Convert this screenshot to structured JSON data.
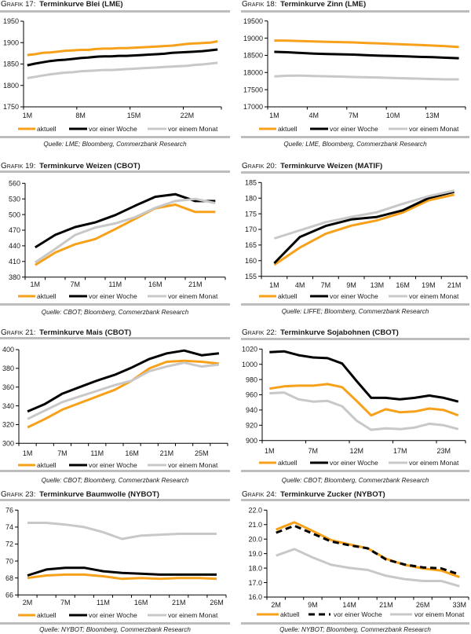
{
  "colors": {
    "current": "#f7a11a",
    "week_ago": "#000000",
    "month_ago": "#c8c8c8",
    "rule": "#bdbdbd",
    "text": "#1a1a1a"
  },
  "chart_data": [
    {
      "type": "line",
      "label": "Grafik",
      "number": "17:",
      "title": "Terminkurve Blei (LME)",
      "source": "Quelle: LME; Bloomberg, Commerzbank Research",
      "xlabel": "",
      "ylabel": "",
      "ylim": [
        1750,
        1950
      ],
      "y_ticks": [
        "1950",
        "1900",
        "1850",
        "1800",
        "1750"
      ],
      "categories": [
        "1M",
        "",
        "",
        "",
        "",
        "",
        "",
        "8M",
        "",
        "",
        "",
        "",
        "",
        "",
        "15M",
        "",
        "",
        "",
        "",
        "",
        "",
        "22M",
        "",
        "",
        "",
        ""
      ],
      "tick_interval": 7,
      "grid": false,
      "legend": "bottom",
      "series": [
        {
          "name": "aktuell",
          "color": "#f7a11a",
          "style": "solid",
          "values": [
            1871,
            1873,
            1876,
            1877,
            1879,
            1881,
            1882,
            1883,
            1883,
            1885,
            1886,
            1886,
            1887,
            1887,
            1888,
            1889,
            1890,
            1891,
            1892,
            1893,
            1895,
            1897,
            1898,
            1899,
            1900,
            1903
          ]
        },
        {
          "name": "vor einer Woche",
          "color": "#000000",
          "style": "solid",
          "values": [
            1847,
            1851,
            1854,
            1857,
            1859,
            1860,
            1862,
            1864,
            1865,
            1867,
            1868,
            1868,
            1869,
            1869,
            1870,
            1871,
            1872,
            1873,
            1874,
            1876,
            1877,
            1878,
            1879,
            1880,
            1882,
            1884
          ]
        },
        {
          "name": "vor einem Monat",
          "color": "#c8c8c8",
          "style": "solid",
          "values": [
            1817,
            1820,
            1823,
            1826,
            1828,
            1830,
            1831,
            1833,
            1834,
            1835,
            1836,
            1836,
            1837,
            1838,
            1839,
            1840,
            1841,
            1842,
            1843,
            1844,
            1845,
            1846,
            1848,
            1849,
            1851,
            1853
          ]
        }
      ]
    },
    {
      "type": "line",
      "label": "Grafik",
      "number": "18:",
      "title": "Terminkurve Zinn (LME)",
      "source": "Quelle: LME, Bloomberg, Commerzbank Research",
      "xlabel": "",
      "ylabel": "",
      "ylim": [
        17000,
        19500
      ],
      "y_ticks": [
        "19500",
        "19000",
        "18500",
        "18000",
        "17500",
        "17000"
      ],
      "categories": [
        "1M",
        "",
        "",
        "4M",
        "",
        "",
        "7M",
        "",
        "",
        "10M",
        "",
        "",
        "13M",
        "",
        ""
      ],
      "tick_interval": 3,
      "grid": false,
      "legend": "bottom",
      "series": [
        {
          "name": "aktuell",
          "color": "#f7a11a",
          "style": "solid",
          "values": [
            18930,
            18925,
            18915,
            18905,
            18895,
            18885,
            18875,
            18860,
            18845,
            18830,
            18815,
            18800,
            18785,
            18765,
            18740
          ]
        },
        {
          "name": "vor einer Woche",
          "color": "#000000",
          "style": "solid",
          "values": [
            18600,
            18590,
            18570,
            18550,
            18540,
            18530,
            18520,
            18505,
            18490,
            18480,
            18470,
            18455,
            18445,
            18430,
            18415
          ]
        },
        {
          "name": "vor einem Monat",
          "color": "#c8c8c8",
          "style": "solid",
          "values": [
            17885,
            17905,
            17910,
            17900,
            17890,
            17880,
            17870,
            17860,
            17850,
            17840,
            17830,
            17820,
            17810,
            17800,
            17800
          ]
        }
      ]
    },
    {
      "type": "line",
      "label": "Grafik",
      "number": "19:",
      "title": "Terminkurve Weizen (CBOT)",
      "source": "Quelle: CBOT; Bloomberg, Commerzbank Research",
      "xlabel": "",
      "ylabel": "",
      "ylim": [
        380,
        560
      ],
      "y_ticks": [
        "560",
        "530",
        "500",
        "470",
        "440",
        "410",
        "380"
      ],
      "categories": [
        "1M",
        "",
        "7M",
        "",
        "11M",
        "",
        "16M",
        "",
        "21M",
        ""
      ],
      "tick_interval": 1,
      "grid": false,
      "legend": "bottom",
      "series": [
        {
          "name": "aktuell",
          "color": "#f7a11a",
          "style": "solid",
          "values": [
            403,
            427,
            443,
            453,
            472,
            492,
            512,
            519,
            505,
            505
          ]
        },
        {
          "name": "vor einer Woche",
          "color": "#000000",
          "style": "solid",
          "values": [
            437,
            461,
            476,
            485,
            499,
            517,
            534,
            539,
            526,
            526
          ]
        },
        {
          "name": "vor einem Monat",
          "color": "#c8c8c8",
          "style": "solid",
          "values": [
            408,
            434,
            461,
            475,
            483,
            495,
            513,
            526,
            530,
            522
          ]
        }
      ]
    },
    {
      "type": "line",
      "label": "Grafik",
      "number": "20:",
      "title": "Terminkurve Weizen (MATIF)",
      "source": "Quelle: LIFFE; Bloomberg, Commerzbank Research",
      "xlabel": "",
      "ylabel": "",
      "ylim": [
        155,
        185
      ],
      "y_ticks": [
        "185",
        "180",
        "175",
        "170",
        "165",
        "160",
        "155"
      ],
      "categories": [
        "1M",
        "4M",
        "7M",
        "9M",
        "13M",
        "16M",
        "19M",
        "21M"
      ],
      "tick_interval": 1,
      "grid": false,
      "legend": "bottom",
      "series": [
        {
          "name": "aktuell",
          "color": "#f7a11a",
          "style": "solid",
          "values": [
            158.7,
            164.2,
            168.6,
            171.2,
            172.9,
            175.4,
            179.3,
            181.1
          ]
        },
        {
          "name": "vor einer Woche",
          "color": "#000000",
          "style": "solid",
          "values": [
            159.2,
            167.6,
            171.1,
            173.2,
            174.0,
            176.1,
            180.0,
            182.0
          ]
        },
        {
          "name": "vor einem Monat",
          "color": "#c8c8c8",
          "style": "solid",
          "values": [
            167.1,
            169.7,
            172.3,
            174.0,
            175.5,
            178.2,
            180.6,
            182.4
          ]
        }
      ]
    },
    {
      "type": "line",
      "label": "Grafik",
      "number": "21:",
      "title": "Terminkurve Mais (CBOT)",
      "source": "Quelle: CBOT; Bloomberg, Commerzbank Research",
      "xlabel": "",
      "ylabel": "",
      "ylim": [
        300,
        400
      ],
      "y_ticks": [
        "400",
        "380",
        "360",
        "340",
        "320",
        "300"
      ],
      "categories": [
        "1M",
        "",
        "7M",
        "",
        "11M",
        "",
        "16M",
        "",
        "21M",
        "",
        "25M",
        ""
      ],
      "tick_interval": 1,
      "grid": false,
      "legend": "bottom",
      "series": [
        {
          "name": "aktuell",
          "color": "#f7a11a",
          "style": "solid",
          "values": [
            317,
            326,
            336,
            343,
            350,
            357,
            367,
            380,
            387,
            388,
            387,
            385
          ]
        },
        {
          "name": "vor einer Woche",
          "color": "#000000",
          "style": "solid",
          "values": [
            334,
            342,
            353,
            360,
            367,
            373,
            381,
            390,
            396,
            399,
            394,
            396
          ]
        },
        {
          "name": "vor einem Monat",
          "color": "#c8c8c8",
          "style": "solid",
          "values": [
            326,
            335,
            344,
            350,
            356,
            362,
            367,
            377,
            382,
            386,
            382,
            384
          ]
        }
      ]
    },
    {
      "type": "line",
      "label": "Grafik",
      "number": "22:",
      "title": "Terminkurve Sojabohnen (CBOT)",
      "source": "Quelle: CBOT; Bloomberg, Commerzbank Research",
      "xlabel": "",
      "ylabel": "",
      "ylim": [
        900,
        1020
      ],
      "y_ticks": [
        "1020",
        "1000",
        "980",
        "960",
        "940",
        "920",
        "900"
      ],
      "categories": [
        "1M",
        "",
        "",
        "7M",
        "",
        "",
        "12M",
        "",
        "",
        "17M",
        "",
        "",
        "23M",
        ""
      ],
      "tick_interval": 3,
      "grid": false,
      "legend": "bottom",
      "series": [
        {
          "name": "aktuell",
          "color": "#f7a11a",
          "style": "solid",
          "values": [
            968,
            971,
            972,
            972,
            974,
            970,
            952,
            933,
            941,
            937,
            938,
            942,
            940,
            933
          ]
        },
        {
          "name": "vor einer Woche",
          "color": "#000000",
          "style": "solid",
          "values": [
            1016,
            1017,
            1012,
            1009,
            1008,
            1001,
            978,
            956,
            956,
            954,
            956,
            959,
            956,
            951
          ]
        },
        {
          "name": "vor einem Monat",
          "color": "#c8c8c8",
          "style": "solid",
          "values": [
            962,
            963,
            954,
            951,
            952,
            945,
            926,
            914,
            916,
            915,
            917,
            922,
            920,
            915
          ]
        }
      ]
    },
    {
      "type": "line",
      "label": "Grafik",
      "number": "23:",
      "title": "Terminkurve Baumwolle (NYBOT)",
      "source": "Quelle: NYBOT; Bloomberg, Commerzbank Research",
      "xlabel": "",
      "ylabel": "",
      "ylim": [
        66,
        76
      ],
      "y_ticks": [
        "76",
        "74",
        "72",
        "70",
        "68",
        "66"
      ],
      "categories": [
        "2M",
        "",
        "7M",
        "",
        "11M",
        "",
        "16M",
        "",
        "21M",
        "",
        "26M"
      ],
      "tick_interval": 1,
      "grid": false,
      "legend": "bottom",
      "series": [
        {
          "name": "aktuell",
          "color": "#f7a11a",
          "style": "solid",
          "values": [
            68.0,
            68.3,
            68.4,
            68.4,
            68.2,
            67.9,
            68.0,
            67.9,
            68.0,
            68.0,
            67.9
          ]
        },
        {
          "name": "vor einer Woche",
          "color": "#000000",
          "style": "solid",
          "values": [
            68.3,
            69.0,
            69.2,
            69.2,
            68.8,
            68.6,
            68.5,
            68.4,
            68.4,
            68.4,
            68.4
          ]
        },
        {
          "name": "vor einem Monat",
          "color": "#c8c8c8",
          "style": "solid",
          "values": [
            74.5,
            74.5,
            74.3,
            74.0,
            73.4,
            72.6,
            73.0,
            73.1,
            73.2,
            73.2,
            73.2
          ]
        }
      ]
    },
    {
      "type": "line",
      "label": "Grafik",
      "number": "24:",
      "title": "Terminkurve Zucker (NYBOT)",
      "source": "Quelle: NYBOT; Bloomberg, Commerzbank Research",
      "xlabel": "",
      "ylabel": "",
      "ylim": [
        16.0,
        22.0
      ],
      "y_ticks": [
        "22.0",
        "21.0",
        "20.0",
        "19.0",
        "18.0",
        "17.0",
        "16.0"
      ],
      "categories": [
        "2M",
        "",
        "9M",
        "",
        "14M",
        "",
        "21M",
        "",
        "26M",
        "",
        "33M"
      ],
      "tick_interval": 1,
      "grid": false,
      "legend": "bottom",
      "series": [
        {
          "name": "aktuell",
          "color": "#f7a11a",
          "style": "solid",
          "values": [
            20.65,
            21.16,
            20.56,
            19.93,
            19.63,
            19.36,
            18.64,
            18.23,
            17.98,
            17.83,
            17.38
          ]
        },
        {
          "name": "vor einer Woche",
          "color": "#000000",
          "style": "dashed",
          "values": [
            20.44,
            20.92,
            20.38,
            19.84,
            19.57,
            19.36,
            18.59,
            18.25,
            18.05,
            17.98,
            17.56
          ]
        },
        {
          "name": "vor einem Monat",
          "color": "#c8c8c8",
          "style": "solid",
          "values": [
            18.86,
            19.31,
            18.73,
            18.23,
            18.01,
            17.87,
            17.47,
            17.24,
            17.11,
            17.11,
            16.75
          ]
        }
      ]
    }
  ]
}
